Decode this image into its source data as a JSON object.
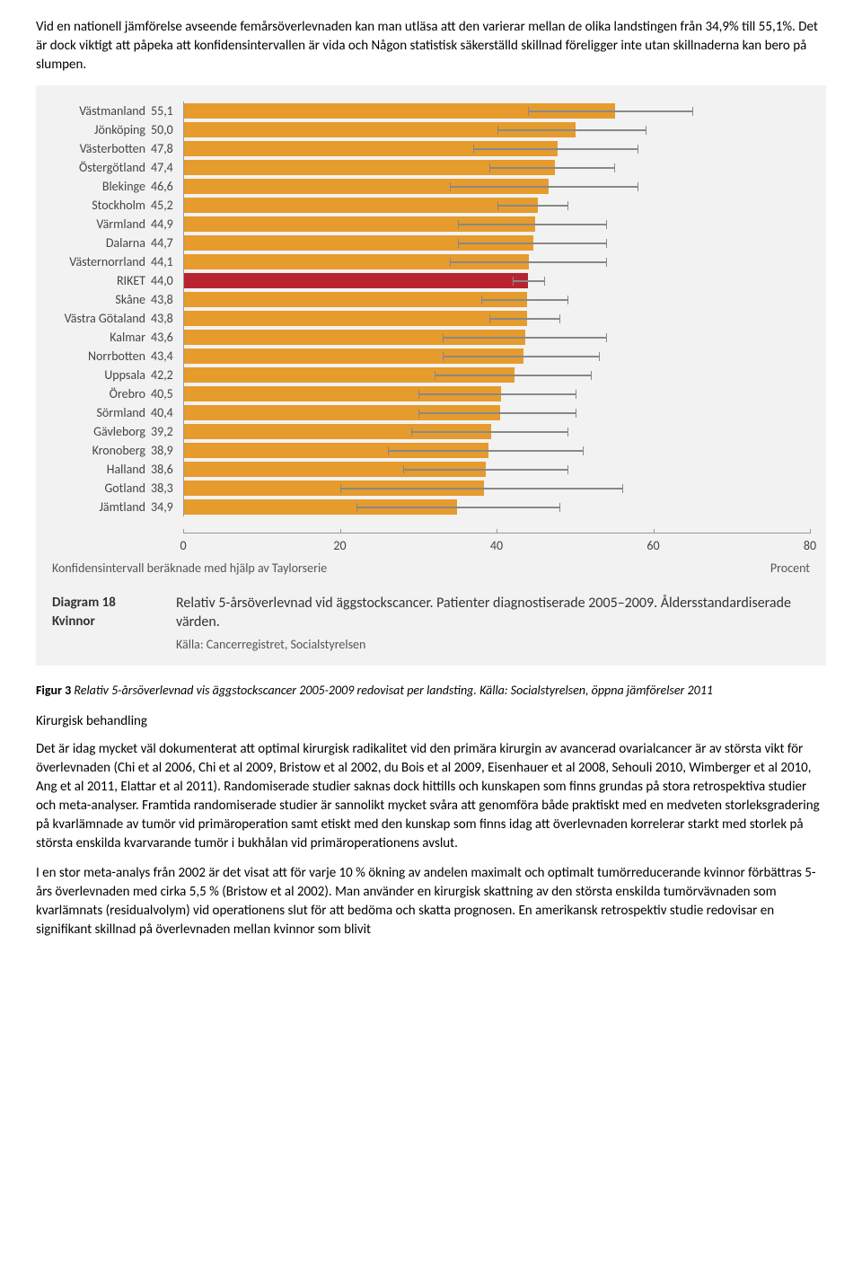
{
  "intro": {
    "p1": "Vid en nationell jämförelse avseende femårsöverlevnaden kan man utläsa att den varierar mellan de olika landstingen från 34,9% till 55,1%. Det är dock viktigt att påpeka att konfidensintervallen är vida och Någon statistisk säkerställd skillnad föreligger inte utan skillnaderna kan bero på slumpen."
  },
  "chart": {
    "type": "bar",
    "xmax": 80,
    "ticks": [
      0,
      20,
      40,
      60,
      80
    ],
    "bar_color": "#e69b2d",
    "highlight_color": "#b8232f",
    "ci_color": "#888888",
    "background": "#f2f2f2",
    "rows": [
      {
        "label": "Västmanland",
        "value": 55.1,
        "ci_lo": 44,
        "ci_hi": 65,
        "highlight": false
      },
      {
        "label": "Jönköping",
        "value": 50.0,
        "ci_lo": 40,
        "ci_hi": 59,
        "highlight": false
      },
      {
        "label": "Västerbotten",
        "value": 47.8,
        "ci_lo": 37,
        "ci_hi": 58,
        "highlight": false
      },
      {
        "label": "Östergötland",
        "value": 47.4,
        "ci_lo": 39,
        "ci_hi": 55,
        "highlight": false
      },
      {
        "label": "Blekinge",
        "value": 46.6,
        "ci_lo": 34,
        "ci_hi": 58,
        "highlight": false
      },
      {
        "label": "Stockholm",
        "value": 45.2,
        "ci_lo": 40,
        "ci_hi": 49,
        "highlight": false
      },
      {
        "label": "Värmland",
        "value": 44.9,
        "ci_lo": 35,
        "ci_hi": 54,
        "highlight": false
      },
      {
        "label": "Dalarna",
        "value": 44.7,
        "ci_lo": 35,
        "ci_hi": 54,
        "highlight": false
      },
      {
        "label": "Västernorrland",
        "value": 44.1,
        "ci_lo": 34,
        "ci_hi": 54,
        "highlight": false
      },
      {
        "label": "RIKET",
        "value": 44.0,
        "ci_lo": 42,
        "ci_hi": 46,
        "highlight": true
      },
      {
        "label": "Skåne",
        "value": 43.8,
        "ci_lo": 38,
        "ci_hi": 49,
        "highlight": false
      },
      {
        "label": "Västra Götaland",
        "value": 43.8,
        "ci_lo": 39,
        "ci_hi": 48,
        "highlight": false
      },
      {
        "label": "Kalmar",
        "value": 43.6,
        "ci_lo": 33,
        "ci_hi": 54,
        "highlight": false
      },
      {
        "label": "Norrbotten",
        "value": 43.4,
        "ci_lo": 33,
        "ci_hi": 53,
        "highlight": false
      },
      {
        "label": "Uppsala",
        "value": 42.2,
        "ci_lo": 32,
        "ci_hi": 52,
        "highlight": false
      },
      {
        "label": "Örebro",
        "value": 40.5,
        "ci_lo": 30,
        "ci_hi": 50,
        "highlight": false
      },
      {
        "label": "Sörmland",
        "value": 40.4,
        "ci_lo": 30,
        "ci_hi": 50,
        "highlight": false
      },
      {
        "label": "Gävleborg",
        "value": 39.2,
        "ci_lo": 29,
        "ci_hi": 49,
        "highlight": false
      },
      {
        "label": "Kronoberg",
        "value": 38.9,
        "ci_lo": 26,
        "ci_hi": 51,
        "highlight": false
      },
      {
        "label": "Halland",
        "value": 38.6,
        "ci_lo": 28,
        "ci_hi": 49,
        "highlight": false
      },
      {
        "label": "Gotland",
        "value": 38.3,
        "ci_lo": 20,
        "ci_hi": 56,
        "highlight": false
      },
      {
        "label": "Jämtland",
        "value": 34.9,
        "ci_lo": 22,
        "ci_hi": 48,
        "highlight": false
      }
    ],
    "footnote_left": "Konfidensintervall beräknade med hjälp av Taylorserie",
    "footnote_right": "Procent",
    "caption_left_1": "Diagram 18",
    "caption_left_2": "Kvinnor",
    "caption_title": "Relativ 5-årsöverlevnad vid äggstockscancer. Patienter diagnostiserade 2005–2009. Åldersstandardiserade värden.",
    "caption_source": "Källa: Cancerregistret, Socialstyrelsen"
  },
  "fig3": {
    "bold": "Figur 3",
    "rest": " Relativ 5-årsöverlevnad vis äggstockscancer 2005-2009 redovisat per landsting. Källa: Socialstyrelsen, öppna jämförelser 2011"
  },
  "section": {
    "heading": "Kirurgisk behandling",
    "p1": "Det är idag mycket väl dokumenterat att optimal kirurgisk radikalitet vid den primära kirurgin av avancerad ovarialcancer är av största vikt för överlevnaden (Chi et al 2006, Chi et al 2009, Bristow et al 2002, du Bois et al 2009, Eisenhauer et al 2008, Sehouli 2010, Wimberger et al 2010, Ang et al 2011, Elattar et al 2011). Randomiserade studier saknas dock hittills och kunskapen som finns grundas på stora retrospektiva studier och meta-analyser. Framtida randomiserade studier är sannolikt mycket svåra att genomföra både praktiskt med en medveten storleksgradering på kvarlämnade av tumör vid primäroperation samt etiskt med den kunskap som finns idag att överlevnaden korrelerar starkt med storlek på största enskilda kvarvarande tumör i bukhålan vid primäroperationens avslut.",
    "p2": "I en stor meta-analys från 2002 är det visat att för varje 10 % ökning av andelen maximalt och optimalt tumörreducerande kvinnor förbättras 5-års överlevnaden med cirka 5,5 % (Bristow et al 2002). Man använder en kirurgisk skattning av den största enskilda tumörvävnaden som kvarlämnats (residualvolym) vid operationens slut för att bedöma och skatta prognosen. En amerikansk retrospektiv studie redovisar en signifikant skillnad på överlevnaden mellan kvinnor som blivit"
  }
}
